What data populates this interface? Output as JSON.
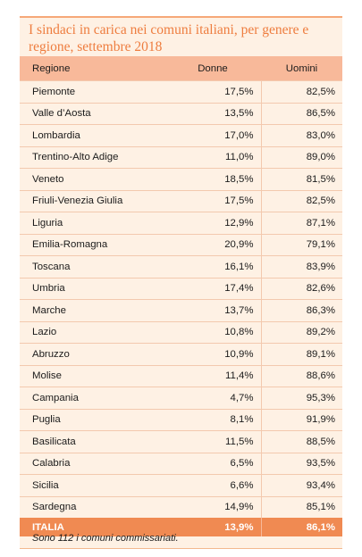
{
  "title": "I sindaci in carica nei comuni italiani, per genere e regione, settembre 2018",
  "headers": [
    "Regione",
    "Donne",
    "Uomini"
  ],
  "rows": [
    {
      "regione": "Piemonte",
      "donne": "17,5%",
      "uomini": "82,5%"
    },
    {
      "regione": "Valle d’Aosta",
      "donne": "13,5%",
      "uomini": "86,5%"
    },
    {
      "regione": "Lombardia",
      "donne": "17,0%",
      "uomini": "83,0%"
    },
    {
      "regione": "Trentino-Alto Adige",
      "donne": "11,0%",
      "uomini": "89,0%"
    },
    {
      "regione": "Veneto",
      "donne": "18,5%",
      "uomini": "81,5%"
    },
    {
      "regione": "Friuli-Venezia Giulia",
      "donne": "17,5%",
      "uomini": "82,5%"
    },
    {
      "regione": "Liguria",
      "donne": "12,9%",
      "uomini": "87,1%"
    },
    {
      "regione": "Emilia-Romagna",
      "donne": "20,9%",
      "uomini": "79,1%"
    },
    {
      "regione": "Toscana",
      "donne": "16,1%",
      "uomini": "83,9%"
    },
    {
      "regione": "Umbria",
      "donne": "17,4%",
      "uomini": "82,6%"
    },
    {
      "regione": "Marche",
      "donne": "13,7%",
      "uomini": "86,3%"
    },
    {
      "regione": "Lazio",
      "donne": "10,8%",
      "uomini": "89,2%"
    },
    {
      "regione": "Abruzzo",
      "donne": "10,9%",
      "uomini": "89,1%"
    },
    {
      "regione": "Molise",
      "donne": "11,4%",
      "uomini": "88,6%"
    },
    {
      "regione": "Campania",
      "donne": "4,7%",
      "uomini": "95,3%"
    },
    {
      "regione": "Puglia",
      "donne": "8,1%",
      "uomini": "91,9%"
    },
    {
      "regione": "Basilicata",
      "donne": "11,5%",
      "uomini": "88,5%"
    },
    {
      "regione": "Calabria",
      "donne": "6,5%",
      "uomini": "93,5%"
    },
    {
      "regione": "Sicilia",
      "donne": "6,6%",
      "uomini": "93,4%"
    },
    {
      "regione": "Sardegna",
      "donne": "14,9%",
      "uomini": "85,1%"
    }
  ],
  "total": {
    "regione": "ITALIA",
    "donne": "13,9%",
    "uomini": "86,1%"
  },
  "note": "Sono 112 i comuni commissariati.",
  "colors": {
    "accent": "#ee7d3f",
    "background": "#fef1e4",
    "header": "#f8b99a",
    "total_row": "#f08a52"
  }
}
